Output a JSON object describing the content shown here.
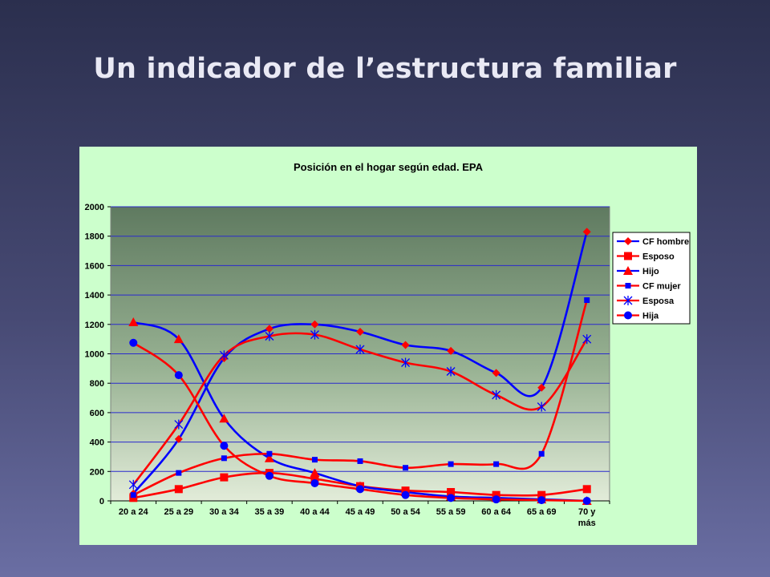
{
  "slide": {
    "title": "Un indicador de l’estructura familiar"
  },
  "chart_data": {
    "type": "line",
    "title": "Posición en el hogar según edad. EPA",
    "xlabel": "",
    "ylabel": "",
    "ylim": [
      0,
      2000
    ],
    "ytick_step": 200,
    "grid": true,
    "legend_position": "right",
    "categories": [
      "20 a 24",
      "25 a 29",
      "30 a 34",
      "35 a 39",
      "40 a 44",
      "45 a 49",
      "50 a 54",
      "55 a 59",
      "60 a 64",
      "65 a 69",
      "70 y más"
    ],
    "series": [
      {
        "name": "CF hombre",
        "color": "#0000ff",
        "marker": "diamond",
        "marker_color": "#ff0000",
        "values": [
          50,
          420,
          970,
          1170,
          1200,
          1150,
          1060,
          1020,
          870,
          770,
          1830
        ]
      },
      {
        "name": "Esposo",
        "color": "#ff0000",
        "marker": "square",
        "marker_color": "#ff0000",
        "values": [
          20,
          80,
          160,
          190,
          150,
          100,
          70,
          60,
          40,
          40,
          80
        ]
      },
      {
        "name": "Hijo",
        "color": "#0000ff",
        "marker": "triangle",
        "marker_color": "#ff0000",
        "values": [
          1215,
          1100,
          560,
          290,
          190,
          100,
          60,
          30,
          20,
          10,
          0
        ]
      },
      {
        "name": "CF mujer",
        "color": "#ff0000",
        "marker": "small-square",
        "marker_color": "#0000ff",
        "values": [
          40,
          190,
          290,
          320,
          280,
          270,
          225,
          250,
          250,
          320,
          1365
        ]
      },
      {
        "name": "Esposa",
        "color": "#ff0000",
        "marker": "star",
        "marker_color": "#0000ff",
        "values": [
          110,
          520,
          990,
          1120,
          1130,
          1030,
          940,
          880,
          720,
          640,
          1100
        ]
      },
      {
        "name": "Hija",
        "color": "#ff0000",
        "marker": "circle",
        "marker_color": "#0000ff",
        "values": [
          1075,
          855,
          375,
          170,
          120,
          80,
          40,
          20,
          10,
          5,
          0
        ]
      }
    ]
  }
}
